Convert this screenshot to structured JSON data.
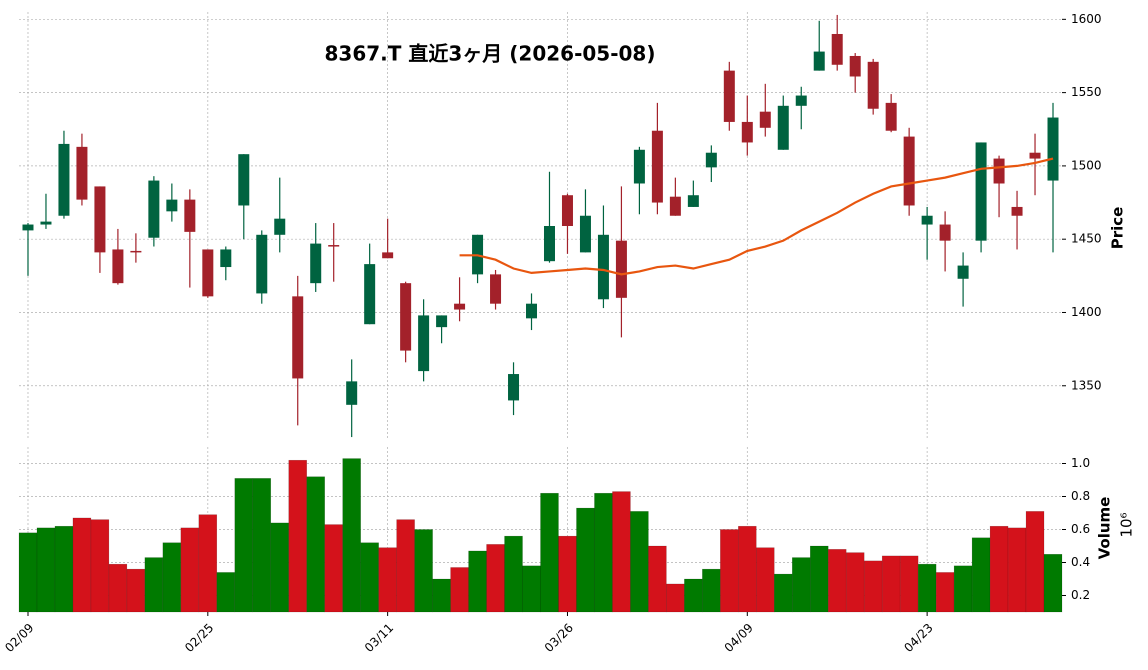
{
  "chart_data": {
    "type": "candlestick",
    "title": "8367.T  直近3ヶ月  (2026-05-08)",
    "price_label": "Price",
    "volume_label": "Volume",
    "volume_multiplier_label": "10⁶",
    "categories": [
      "02/09",
      null,
      null,
      null,
      null,
      null,
      null,
      null,
      null,
      null,
      "02/25",
      null,
      null,
      null,
      null,
      null,
      null,
      null,
      null,
      null,
      "03/11",
      null,
      null,
      null,
      null,
      null,
      null,
      null,
      null,
      null,
      "03/26",
      null,
      null,
      null,
      null,
      null,
      null,
      null,
      null,
      null,
      "04/09",
      null,
      null,
      null,
      null,
      null,
      null,
      null,
      null,
      null,
      "04/23",
      null,
      null,
      null,
      null,
      null,
      null,
      null
    ],
    "open": [
      1456,
      1460,
      1466,
      1513,
      1486,
      1443,
      1442,
      1451,
      1469,
      1477,
      1443,
      1431,
      1473,
      1413,
      1453,
      1411,
      1420,
      1446,
      1337,
      1392,
      1441,
      1420,
      1360,
      1390,
      1406,
      1426,
      1426,
      1340,
      1396,
      1435,
      1480,
      1441,
      1409,
      1449,
      1488,
      1524,
      1479,
      1472,
      1499,
      1565,
      1530,
      1537,
      1511,
      1541,
      1565,
      1590,
      1575,
      1571,
      1543,
      1520,
      1460,
      1460,
      1423,
      1449,
      1505,
      1472,
      1509,
      1490
    ],
    "high": [
      1461,
      1481,
      1524,
      1522,
      1486,
      1457,
      1454,
      1493,
      1488,
      1484,
      1443,
      1445,
      1508,
      1456,
      1492,
      1425,
      1461,
      1461,
      1368,
      1447,
      1464,
      1421,
      1409,
      1398,
      1424,
      1453,
      1429,
      1366,
      1413,
      1496,
      1481,
      1484,
      1473,
      1486,
      1513,
      1543,
      1492,
      1490,
      1514,
      1571,
      1548,
      1556,
      1548,
      1554,
      1599,
      1603,
      1577,
      1573,
      1549,
      1526,
      1472,
      1469,
      1441,
      1516,
      1507,
      1483,
      1522,
      1543
    ],
    "low": [
      1425,
      1457,
      1464,
      1473,
      1427,
      1419,
      1434,
      1445,
      1462,
      1417,
      1410,
      1422,
      1450,
      1406,
      1441,
      1323,
      1414,
      1421,
      1315,
      1392,
      1437,
      1366,
      1353,
      1379,
      1394,
      1420,
      1402,
      1330,
      1388,
      1434,
      1440,
      1441,
      1403,
      1383,
      1467,
      1467,
      1466,
      1472,
      1489,
      1524,
      1507,
      1520,
      1511,
      1525,
      1565,
      1565,
      1550,
      1535,
      1523,
      1466,
      1436,
      1428,
      1404,
      1441,
      1465,
      1443,
      1480,
      1441
    ],
    "close": [
      1460,
      1462,
      1515,
      1477,
      1441,
      1420,
      1441,
      1490,
      1477,
      1455,
      1411,
      1443,
      1508,
      1453,
      1464,
      1355,
      1447,
      1445,
      1353,
      1433,
      1437,
      1374,
      1398,
      1398,
      1402,
      1453,
      1406,
      1358,
      1406,
      1459,
      1459,
      1466,
      1453,
      1410,
      1511,
      1475,
      1466,
      1480,
      1509,
      1530,
      1516,
      1526,
      1541,
      1548,
      1578,
      1569,
      1561,
      1539,
      1524,
      1473,
      1466,
      1449,
      1432,
      1516,
      1488,
      1466,
      1505,
      1533
    ],
    "volume": [
      0.58,
      0.61,
      0.62,
      0.67,
      0.66,
      0.39,
      0.36,
      0.43,
      0.52,
      0.61,
      0.69,
      0.34,
      0.91,
      0.91,
      0.64,
      1.02,
      0.92,
      0.63,
      1.03,
      0.52,
      0.49,
      0.66,
      0.6,
      0.3,
      0.37,
      0.47,
      0.51,
      0.56,
      0.38,
      0.82,
      0.56,
      0.73,
      0.82,
      0.83,
      0.71,
      0.5,
      0.27,
      0.3,
      0.36,
      0.6,
      0.62,
      0.49,
      0.33,
      0.43,
      0.5,
      0.48,
      0.46,
      0.41,
      0.44,
      0.44,
      0.39,
      0.34,
      0.38,
      0.55,
      0.62,
      0.61,
      0.71,
      0.45
    ],
    "ma": [
      null,
      null,
      null,
      null,
      null,
      null,
      null,
      null,
      null,
      null,
      null,
      null,
      null,
      null,
      null,
      null,
      null,
      null,
      null,
      null,
      null,
      null,
      null,
      null,
      1439,
      1439,
      1436,
      1430,
      1427,
      1428,
      1429,
      1430,
      1429,
      1426,
      1428,
      1431,
      1432,
      1430,
      1433,
      1436,
      1442,
      1445,
      1449,
      1456,
      1462,
      1468,
      1475,
      1481,
      1486,
      1488,
      1490,
      1492,
      1495,
      1498,
      1499,
      1500,
      1502,
      1505
    ],
    "ma_color": "#e8560f",
    "up_color": "#006340",
    "down_color": "#a3212a",
    "volume_up_color": "#007a00",
    "volume_down_color": "#d4121b",
    "ylim": [
      1313,
      1605
    ],
    "yticks": [
      1350,
      1400,
      1450,
      1500,
      1550,
      1600
    ],
    "volume_ylim": [
      0.1,
      1.1
    ],
    "volume_yticks": [
      0.2,
      0.4,
      0.6,
      0.8,
      {
        "value": 1,
        "label": "1.0"
      }
    ],
    "grid": true
  }
}
